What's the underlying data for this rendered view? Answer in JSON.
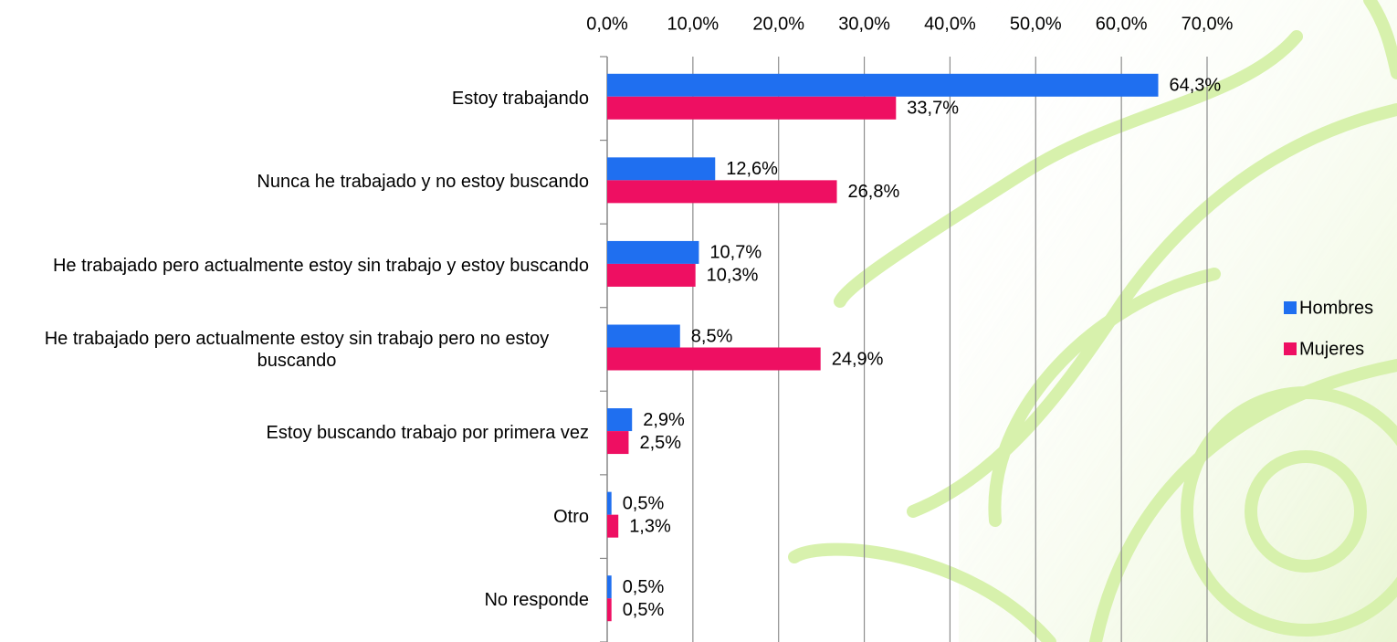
{
  "chart_data": {
    "type": "hbar",
    "categories": [
      "Estoy trabajando",
      "Nunca he trabajado y no estoy buscando",
      "He trabajado pero actualmente estoy sin trabajo y estoy buscando",
      "He trabajado pero actualmente estoy sin trabajo pero no estoy buscando",
      "Estoy buscando trabajo por primera vez",
      "Otro",
      "No responde"
    ],
    "series": [
      {
        "name": "Hombres",
        "color": "#1f6ff0",
        "values": [
          64.3,
          12.6,
          10.7,
          8.5,
          2.9,
          0.5,
          0.5
        ],
        "value_labels": [
          "64,3%",
          "12,6%",
          "10,7%",
          "8,5%",
          "2,9%",
          "0,5%",
          "0,5%"
        ]
      },
      {
        "name": "Mujeres",
        "color": "#ee0f62",
        "values": [
          33.7,
          26.8,
          10.3,
          24.9,
          2.5,
          1.3,
          0.5
        ],
        "value_labels": [
          "33,7%",
          "26,8%",
          "10,3%",
          "24,9%",
          "2,5%",
          "1,3%",
          "0,5%"
        ]
      }
    ],
    "xlim": [
      0,
      70
    ],
    "xticks": [
      {
        "value": 0,
        "label": "0,0%"
      },
      {
        "value": 10,
        "label": "10,0%"
      },
      {
        "value": 20,
        "label": "20,0%"
      },
      {
        "value": 30,
        "label": "30,0%"
      },
      {
        "value": 40,
        "label": "40,0%"
      },
      {
        "value": 50,
        "label": "50,0%"
      },
      {
        "value": 60,
        "label": "60,0%"
      },
      {
        "value": 70,
        "label": "70,0%"
      }
    ],
    "grid": true,
    "legend": "right"
  }
}
